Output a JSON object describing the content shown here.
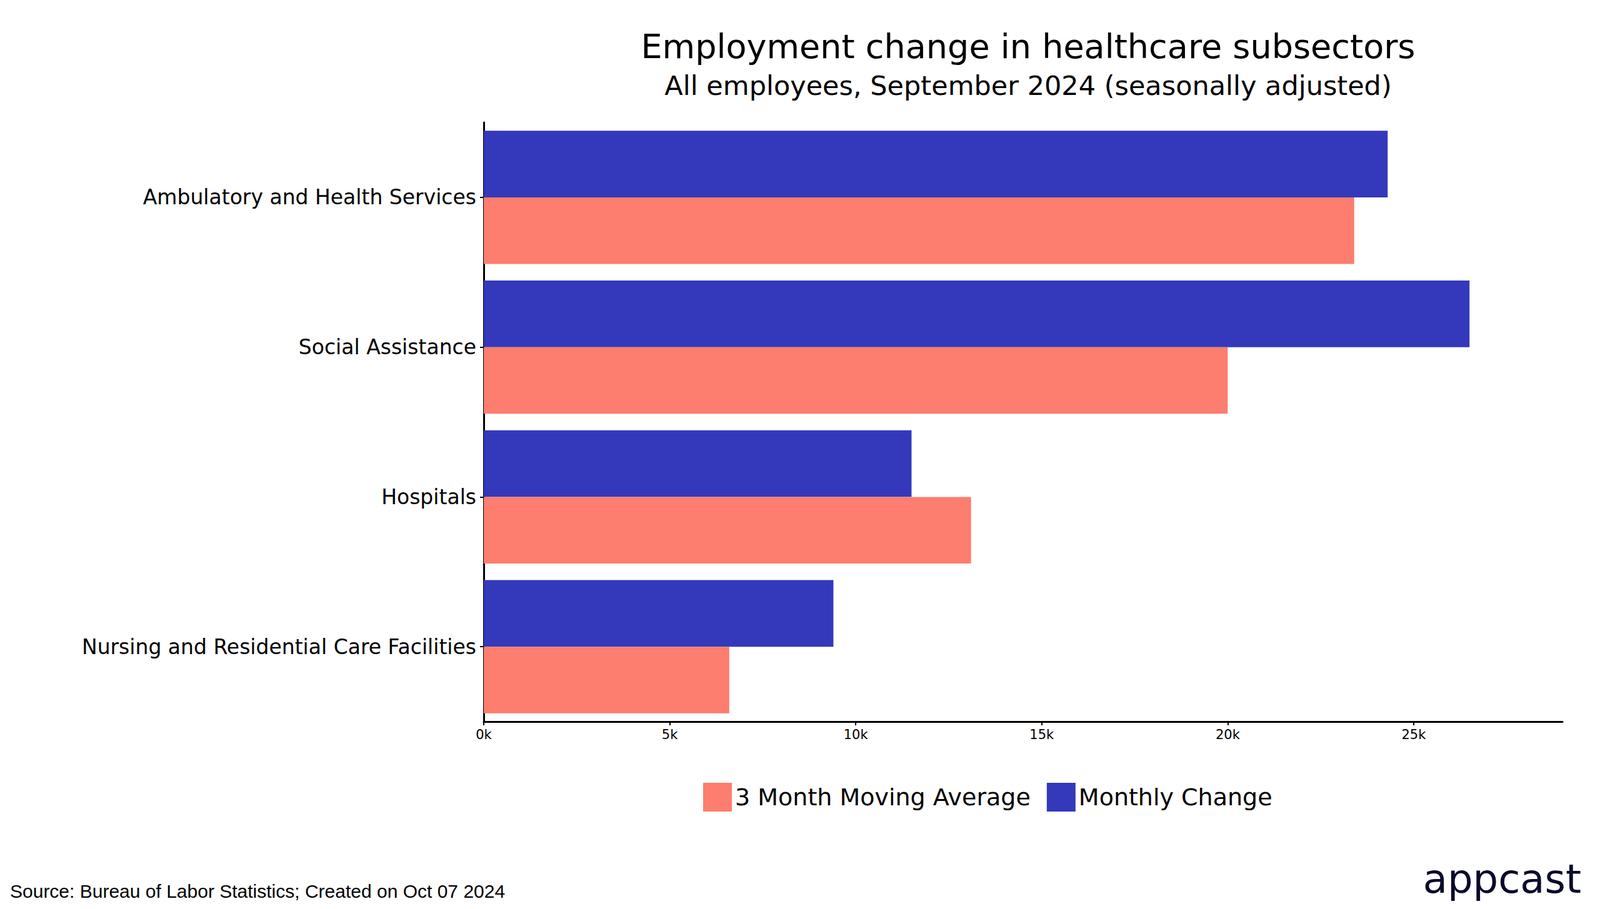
{
  "chart_data": {
    "type": "bar",
    "orientation": "horizontal",
    "title": "Employment change in healthcare subsectors",
    "subtitle": "All employees, September 2024 (seasonally adjusted)",
    "source": "Source: Bureau of Labor Statistics; Created on Oct 07 2024",
    "logo_text": "appcast",
    "categories": [
      "Ambulatory and Health Services",
      "Social Assistance",
      "Hospitals",
      "Nursing and Residential Care Facilities"
    ],
    "series": [
      {
        "name": "Monthly Change",
        "color": "#3438bb",
        "values": [
          24300,
          26500,
          11500,
          9400
        ]
      },
      {
        "name": "3 Month Moving Average",
        "color": "#fd7d6e",
        "values": [
          23400,
          20000,
          13100,
          6600
        ]
      }
    ],
    "xlim": [
      0,
      29000
    ],
    "xticks": [
      {
        "value": 0,
        "label": "0k"
      },
      {
        "value": 5000,
        "label": "5k"
      },
      {
        "value": 10000,
        "label": "10k"
      },
      {
        "value": 15000,
        "label": "15k"
      },
      {
        "value": 20000,
        "label": "20k"
      },
      {
        "value": 25000,
        "label": "25k"
      }
    ],
    "grid": false,
    "legend": "bottom"
  }
}
